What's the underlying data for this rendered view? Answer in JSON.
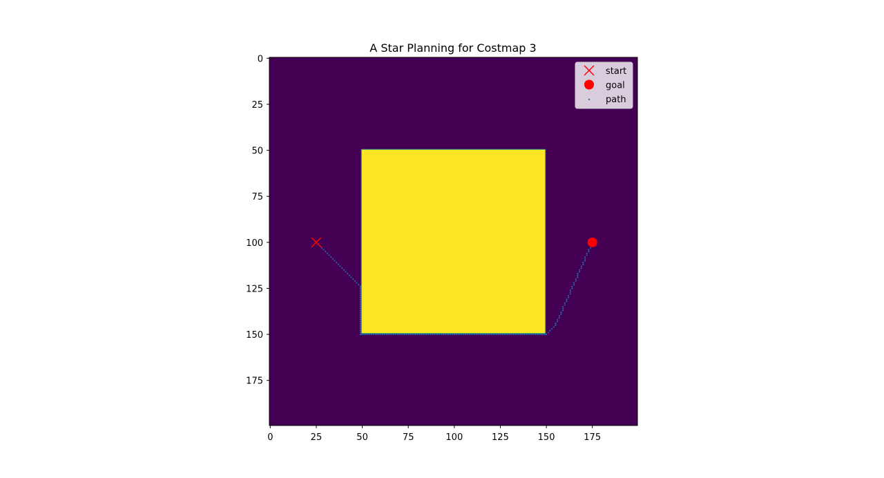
{
  "chart_data": {
    "type": "heatmap",
    "title": "A Star Planning for Costmap 3",
    "xlabel": "",
    "ylabel": "",
    "grid_shape": [
      200,
      200
    ],
    "xlim": [
      -0.5,
      199.5
    ],
    "ylim": [
      199.5,
      -0.5
    ],
    "y_axis_inverted": true,
    "x_ticks": [
      0,
      25,
      50,
      75,
      100,
      125,
      150,
      175
    ],
    "y_ticks": [
      0,
      25,
      50,
      75,
      100,
      125,
      150,
      175
    ],
    "colormap": "viridis",
    "background_color": "#440154",
    "obstacle_color": "#fde725",
    "obstacle": {
      "x_range": [
        50,
        149
      ],
      "y_range": [
        50,
        149
      ]
    },
    "legend": {
      "position": "top-right",
      "entries": [
        {
          "label": "start",
          "marker": "x",
          "color": "#ff0000"
        },
        {
          "label": "goal",
          "marker": "o",
          "color": "#ff0000"
        },
        {
          "label": "path",
          "marker": ".",
          "color": "#1f77b4"
        }
      ]
    },
    "start": {
      "x": 25,
      "y": 100
    },
    "goal": {
      "x": 175,
      "y": 100
    },
    "path_segments": [
      {
        "from": [
          25,
          100
        ],
        "to": [
          49,
          124
        ]
      },
      {
        "from": [
          49,
          124
        ],
        "to": [
          49,
          150
        ]
      },
      {
        "from": [
          49,
          150
        ],
        "to": [
          150,
          150
        ]
      },
      {
        "from": [
          150,
          150
        ],
        "to": [
          155,
          145
        ]
      },
      {
        "from": [
          155,
          145
        ],
        "to": [
          175,
          100
        ]
      }
    ]
  }
}
